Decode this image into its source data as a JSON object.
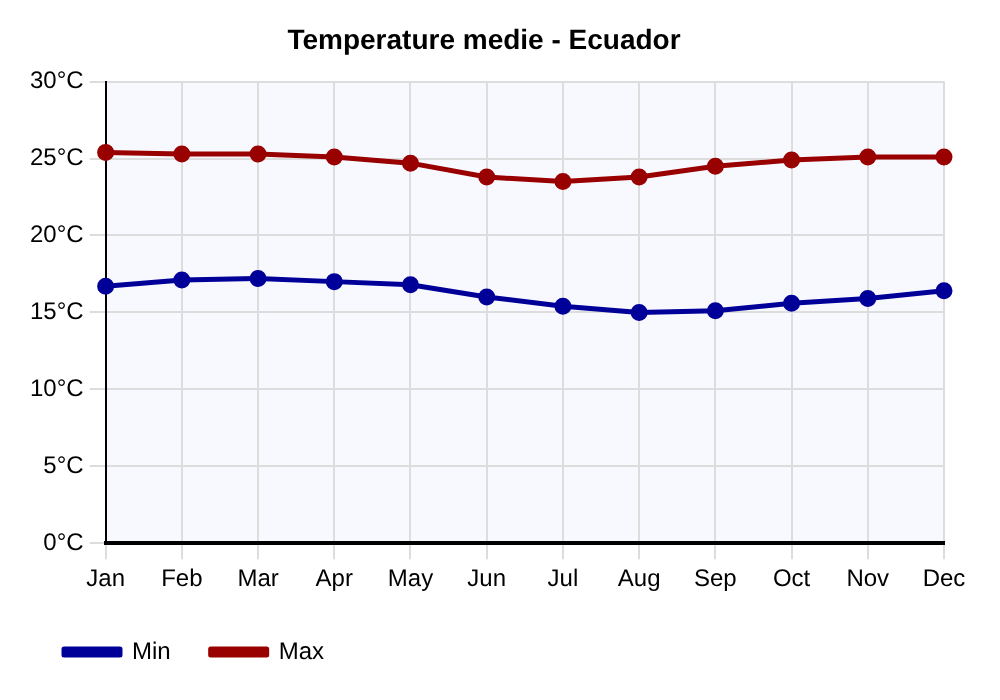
{
  "chart_data": {
    "type": "line",
    "title": "Temperature medie - Ecuador",
    "categories": [
      "Jan",
      "Feb",
      "Mar",
      "Apr",
      "May",
      "Jun",
      "Jul",
      "Aug",
      "Sep",
      "Oct",
      "Nov",
      "Dec"
    ],
    "series": [
      {
        "name": "Min",
        "color": "#000099",
        "values": [
          16.7,
          17.1,
          17.2,
          17.0,
          16.8,
          16.0,
          15.4,
          15.0,
          15.1,
          15.6,
          15.9,
          16.4
        ]
      },
      {
        "name": "Max",
        "color": "#990000",
        "values": [
          25.4,
          25.3,
          25.3,
          25.1,
          24.7,
          23.8,
          23.5,
          23.8,
          24.5,
          24.9,
          25.1,
          25.1
        ]
      }
    ],
    "ylim": [
      0,
      30
    ],
    "yticks": [
      {
        "value": 0,
        "label": "0°C"
      },
      {
        "value": 5,
        "label": "5°C"
      },
      {
        "value": 10,
        "label": "10°C"
      },
      {
        "value": 15,
        "label": "15°C"
      },
      {
        "value": 20,
        "label": "20°C"
      },
      {
        "value": 25,
        "label": "25°C"
      },
      {
        "value": 30,
        "label": "30°C"
      }
    ],
    "grid": true,
    "legend": "bottom left",
    "marker": "circle",
    "line_style": "solid"
  }
}
